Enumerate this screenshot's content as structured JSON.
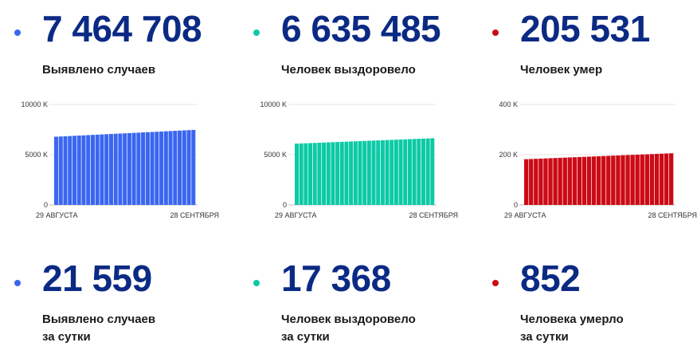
{
  "colors": {
    "blue": "#3a66f0",
    "teal": "#0ccaa6",
    "red": "#cc0a16",
    "number": "#0b2a84"
  },
  "totals": [
    {
      "value": "7 464 708",
      "label": "Выявлено случаев"
    },
    {
      "value": "6 635 485",
      "label": "Человек выздоровело"
    },
    {
      "value": "205 531",
      "label": "Человек умер"
    }
  ],
  "daily": [
    {
      "value": "21 559",
      "label_line1": "Выявлено случаев",
      "label_line2": "за сутки"
    },
    {
      "value": "17 368",
      "label_line1": "Человек выздоровело",
      "label_line2": "за сутки"
    },
    {
      "value": "852",
      "label_line1": "Человека умерло",
      "label_line2": "за сутки"
    }
  ],
  "chart_data": [
    {
      "type": "bar",
      "color": "#3a66f0",
      "ylim": [
        0,
        10000
      ],
      "ytick_values": [
        0,
        5000,
        10000
      ],
      "ytick_labels": [
        "0",
        "5000 K",
        "10000 K"
      ],
      "xtick_labels": [
        "29 АВГУСТА",
        "28 СЕНТЯБРЯ"
      ],
      "start": 6790,
      "end": 7464.708,
      "n": 31
    },
    {
      "type": "bar",
      "color": "#0ccaa6",
      "ylim": [
        0,
        10000
      ],
      "ytick_values": [
        0,
        5000,
        10000
      ],
      "ytick_labels": [
        "0",
        "5000 K",
        "10000 K"
      ],
      "xtick_labels": [
        "29 АВГУСТА",
        "28 СЕНТЯБРЯ"
      ],
      "start": 6100,
      "end": 6635.485,
      "n": 31
    },
    {
      "type": "bar",
      "color": "#cc0a16",
      "ylim": [
        0,
        400
      ],
      "ytick_values": [
        0,
        200,
        400
      ],
      "ytick_labels": [
        "0",
        "200 K",
        "400 K"
      ],
      "xtick_labels": [
        "29 АВГУСТА",
        "28 СЕНТЯБРЯ"
      ],
      "start": 182,
      "end": 205.531,
      "n": 31
    }
  ]
}
